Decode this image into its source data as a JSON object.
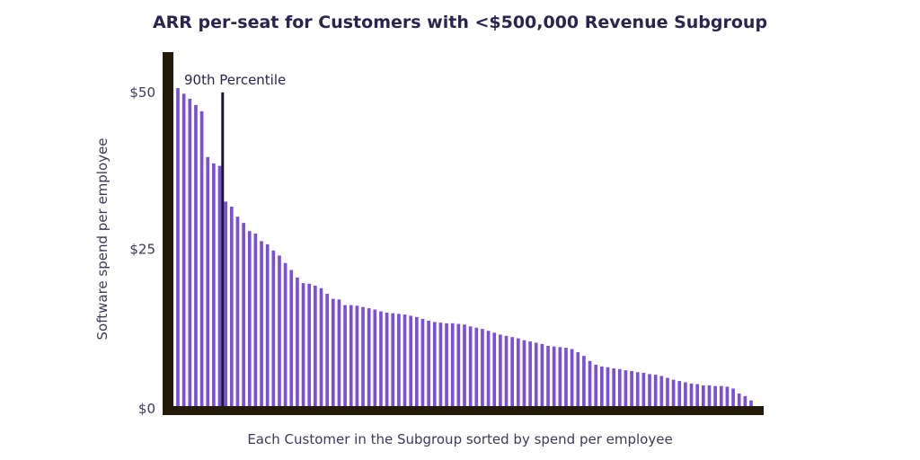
{
  "chart_data": {
    "type": "bar",
    "title": "ARR per-seat for Customers with <$500,000 Revenue Subgroup",
    "xlabel": "Each Customer in the Subgroup sorted by spend per employee",
    "ylabel": "Software spend per employee",
    "ylim": [
      0,
      55
    ],
    "yticks": [
      {
        "value": 0,
        "label": "$0"
      },
      {
        "value": 25,
        "label": "$25"
      },
      {
        "value": 50,
        "label": "$50"
      }
    ],
    "grid": false,
    "bar_color": "#7b4fd6",
    "axis_color": "#241a08",
    "marker_color": "#1a1530",
    "annotation": {
      "label": "90th Percentile",
      "after_index": 7
    },
    "values": [
      50.7,
      49.8,
      49.0,
      48.0,
      47.0,
      39.7,
      38.7,
      38.3,
      32.6,
      31.8,
      30.2,
      29.2,
      27.9,
      27.5,
      26.3,
      25.8,
      24.8,
      24.0,
      22.8,
      21.7,
      20.5,
      19.6,
      19.5,
      19.2,
      18.8,
      17.9,
      17.1,
      17.0,
      16.1,
      16.1,
      16.0,
      15.8,
      15.6,
      15.4,
      15.1,
      14.9,
      14.8,
      14.7,
      14.6,
      14.4,
      14.2,
      13.9,
      13.6,
      13.4,
      13.3,
      13.2,
      13.2,
      13.1,
      13.0,
      12.7,
      12.5,
      12.3,
      12.0,
      11.7,
      11.4,
      11.2,
      11.0,
      10.8,
      10.5,
      10.3,
      10.1,
      9.9,
      9.6,
      9.5,
      9.4,
      9.3,
      9.1,
      8.6,
      8.0,
      7.2,
      6.6,
      6.3,
      6.2,
      6.0,
      5.9,
      5.7,
      5.6,
      5.4,
      5.3,
      5.1,
      5.0,
      4.8,
      4.5,
      4.2,
      4.0,
      3.8,
      3.6,
      3.5,
      3.3,
      3.3,
      3.2,
      3.2,
      3.1,
      2.8,
      2.0,
      1.6,
      0.9
    ]
  }
}
